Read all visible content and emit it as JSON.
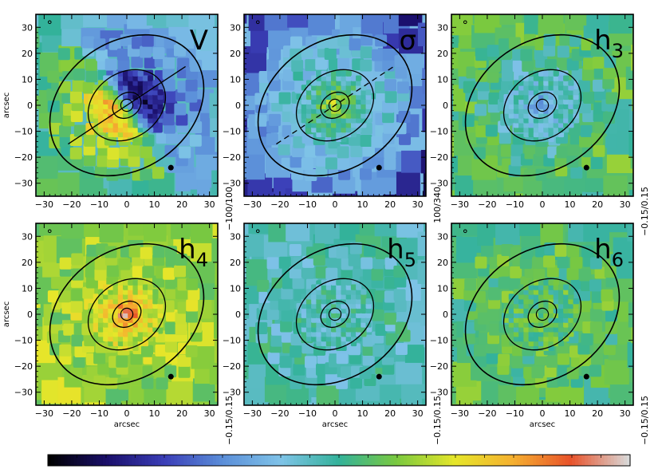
{
  "chart_data": {
    "type": "heatmap",
    "description_note": "",
    "axis": {
      "xlabel": "arcsec",
      "ylabel": "arcsec",
      "xlim": [
        -33,
        33
      ],
      "ylim": [
        -35,
        35
      ],
      "xticks": [
        -30,
        -20,
        -10,
        0,
        10,
        20,
        30
      ],
      "yticks": [
        -30,
        -20,
        -10,
        0,
        10,
        20,
        30
      ]
    },
    "colorbar": {
      "colormap": "sauron",
      "stops": [
        "#000000",
        "#1a0f6b",
        "#3b3fb8",
        "#5b8fd9",
        "#7fc3e8",
        "#33b29a",
        "#7ac93f",
        "#e6e62a",
        "#f5b030",
        "#e8522a",
        "#d8d8d8"
      ]
    },
    "isophotes_arcsec": [
      {
        "a": 5.5,
        "b": 4.6
      },
      {
        "a": 15,
        "b": 12.5
      },
      {
        "a": 30,
        "b": 24.5
      }
    ],
    "position_angle_deg": 35,
    "panels": [
      {
        "id": "V",
        "label_main": "V",
        "label_sub": "",
        "range_text": "−100/100",
        "range": [
          -100,
          100
        ],
        "axis_line": "solid",
        "base": 0.45,
        "pattern": "rotation",
        "amplitude": 0.45
      },
      {
        "id": "sigma",
        "label_main": "σ",
        "label_sub": "",
        "range_text": "100/340",
        "range": [
          100,
          340
        ],
        "axis_line": "dashed",
        "base": 0.38,
        "pattern": "peaked",
        "amplitude": 0.3
      },
      {
        "id": "h3",
        "label_main": "h",
        "label_sub": "3",
        "range_text": "−0.15/0.15",
        "range": [
          -0.15,
          0.15
        ],
        "axis_line": "none",
        "base": 0.55,
        "pattern": "negcenter",
        "amplitude": 0.3
      },
      {
        "id": "h4",
        "label_main": "h",
        "label_sub": "4",
        "range_text": "−0.15/0.15",
        "range": [
          -0.15,
          0.15
        ],
        "axis_line": "none",
        "base": 0.62,
        "pattern": "poscenter",
        "amplitude": 0.3
      },
      {
        "id": "h5",
        "label_main": "h",
        "label_sub": "5",
        "range_text": "−0.15/0.15",
        "range": [
          -0.15,
          0.15
        ],
        "axis_line": "none",
        "base": 0.47,
        "pattern": "flat",
        "amplitude": 0.05
      },
      {
        "id": "h6",
        "label_main": "h",
        "label_sub": "6",
        "range_text": "−0.15/0.15",
        "range": [
          -0.15,
          0.15
        ],
        "axis_line": "none",
        "base": 0.55,
        "pattern": "flat",
        "amplitude": 0.05
      }
    ]
  }
}
